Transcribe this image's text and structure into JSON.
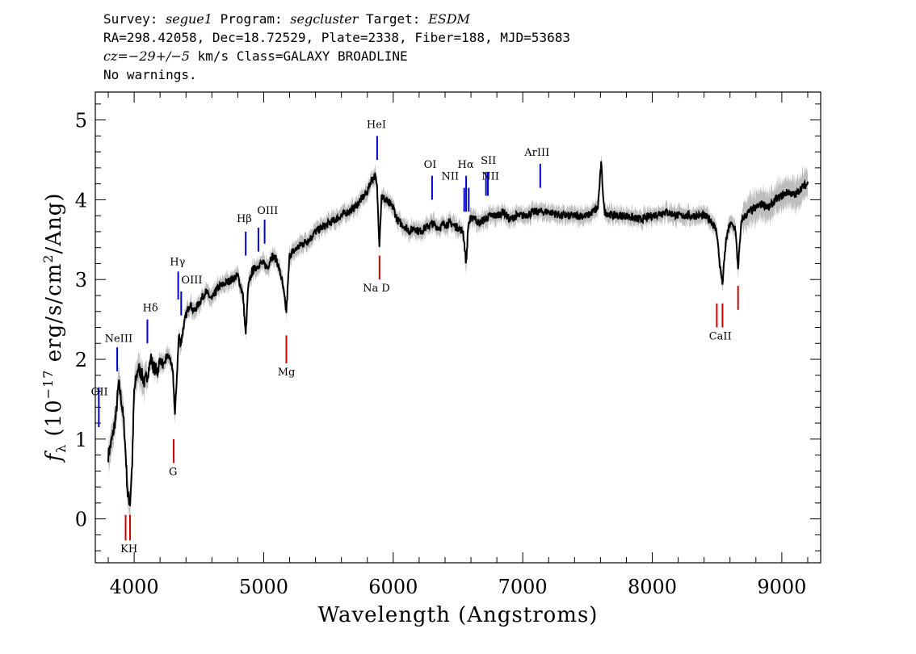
{
  "header": {
    "line1": {
      "survey_label": "Survey:",
      "survey": "segue1",
      "program_label": "Program:",
      "program": "segcluster",
      "target_label": "Target:",
      "target": "ESDM"
    },
    "line2": "RA=298.42058, Dec=18.72529, Plate=2338, Fiber=188, MJD=53683",
    "line3": {
      "cz_label": "cz=",
      "cz_value": "−29+/−5",
      "cz_rest": " km/s Class=GALAXY BROADLINE"
    },
    "line4": "No warnings."
  },
  "chart_data": {
    "type": "line",
    "xlabel": "Wavelength (Angstroms)",
    "ylabel": "f_λ (10^-17 erg/s/cm^2/Ang)",
    "xlim": [
      3700,
      9300
    ],
    "ylim": [
      -0.55,
      5.35
    ],
    "xticks": [
      4000,
      5000,
      6000,
      7000,
      8000,
      9000
    ],
    "yticks": [
      0,
      1,
      2,
      3,
      4,
      5
    ],
    "grid": false,
    "series": [
      {
        "color": "#000000",
        "error_color": "#bdbdbd",
        "x": [
          3800,
          3830,
          3860,
          3880,
          3900,
          3920,
          3935,
          3950,
          3968,
          3985,
          4000,
          4030,
          4060,
          4080,
          4100,
          4130,
          4150,
          4180,
          4200,
          4230,
          4250,
          4280,
          4300,
          4315,
          4330,
          4345,
          4360,
          4380,
          4400,
          4430,
          4460,
          4500,
          4550,
          4600,
          4650,
          4700,
          4750,
          4800,
          4840,
          4861,
          4880,
          4910,
          4940,
          4970,
          5000,
          5030,
          5060,
          5100,
          5140,
          5175,
          5200,
          5230,
          5260,
          5300,
          5350,
          5400,
          5450,
          5500,
          5550,
          5600,
          5650,
          5700,
          5750,
          5800,
          5830,
          5860,
          5875,
          5893,
          5910,
          5940,
          5970,
          6000,
          6030,
          6060,
          6100,
          6130,
          6160,
          6200,
          6250,
          6300,
          6350,
          6400,
          6450,
          6500,
          6540,
          6563,
          6580,
          6620,
          6660,
          6700,
          6750,
          6800,
          6850,
          6900,
          6950,
          7000,
          7100,
          7200,
          7300,
          7400,
          7500,
          7580,
          7605,
          7630,
          7700,
          7800,
          7900,
          8000,
          8100,
          8200,
          8300,
          8400,
          8450,
          8498,
          8520,
          8542,
          8570,
          8600,
          8640,
          8662,
          8690,
          8750,
          8800,
          8850,
          8900,
          8950,
          9000,
          9050,
          9100,
          9150,
          9200
        ],
        "y": [
          0.8,
          1.0,
          1.3,
          1.7,
          1.5,
          1.2,
          0.8,
          0.3,
          0.2,
          0.7,
          1.6,
          1.9,
          1.8,
          1.7,
          1.8,
          2.0,
          1.9,
          1.85,
          2.0,
          1.9,
          2.05,
          2.0,
          1.8,
          1.3,
          1.8,
          2.3,
          2.2,
          2.4,
          2.55,
          2.7,
          2.6,
          2.7,
          2.85,
          2.75,
          2.9,
          2.95,
          3.0,
          3.05,
          2.8,
          2.3,
          2.9,
          3.1,
          3.15,
          3.2,
          3.2,
          3.15,
          3.3,
          3.25,
          3.0,
          2.6,
          3.3,
          3.35,
          3.4,
          3.45,
          3.5,
          3.6,
          3.65,
          3.7,
          3.75,
          3.8,
          3.85,
          3.9,
          4.0,
          4.1,
          4.25,
          4.3,
          4.15,
          3.45,
          4.05,
          4.0,
          3.95,
          3.9,
          3.75,
          3.7,
          3.65,
          3.6,
          3.65,
          3.6,
          3.65,
          3.7,
          3.65,
          3.7,
          3.7,
          3.65,
          3.6,
          3.2,
          3.7,
          3.8,
          3.7,
          3.75,
          3.8,
          3.8,
          3.85,
          3.75,
          3.8,
          3.8,
          3.85,
          3.85,
          3.8,
          3.8,
          3.8,
          3.9,
          4.45,
          3.85,
          3.8,
          3.8,
          3.75,
          3.8,
          3.85,
          3.8,
          3.8,
          3.8,
          3.75,
          3.6,
          3.2,
          2.95,
          3.5,
          3.7,
          3.65,
          3.15,
          3.75,
          3.85,
          3.9,
          3.95,
          3.9,
          4.0,
          4.05,
          4.1,
          4.05,
          4.15,
          4.2
        ]
      }
    ],
    "line_markers": [
      {
        "label": "OII",
        "lambda": 3727,
        "color": "#0000cc",
        "y_top": 1.65,
        "y_bottom": 1.15,
        "label_y": 1.55
      },
      {
        "label": "NeIII",
        "lambda": 3869,
        "color": "#0000cc",
        "y_top": 2.15,
        "y_bottom": 1.85,
        "label_y": 2.22
      },
      {
        "label": "Hδ",
        "lambda": 4102,
        "color": "#0000cc",
        "y_top": 2.5,
        "y_bottom": 2.2,
        "label_y": 2.6
      },
      {
        "label": "Hγ",
        "lambda": 4340,
        "color": "#0000cc",
        "y_top": 3.1,
        "y_bottom": 2.75,
        "label_y": 3.18
      },
      {
        "label": "OIII",
        "lambda": 4363,
        "color": "#0000cc",
        "y_top": 2.85,
        "y_bottom": 2.55,
        "label_y": 2.95
      },
      {
        "label": "Hβ",
        "lambda": 4861,
        "color": "#0000cc",
        "y_top": 3.6,
        "y_bottom": 3.3,
        "label_y": 3.72
      },
      {
        "label": "OIII",
        "lambda": 4959,
        "color": "#0000cc",
        "y_top": 3.65,
        "y_bottom": 3.35,
        "label_y": 3.82
      },
      {
        "label": "OIII",
        "lambda": 5007,
        "color": "#0000cc",
        "y_top": 3.75,
        "y_bottom": 3.45,
        "label_y": 3.82
      },
      {
        "label": "HeI",
        "lambda": 5876,
        "color": "#0000cc",
        "y_top": 4.8,
        "y_bottom": 4.5,
        "label_y": 4.9
      },
      {
        "label": "OI",
        "lambda": 6300,
        "color": "#0000cc",
        "y_top": 4.3,
        "y_bottom": 4.0,
        "label_y": 4.4
      },
      {
        "label": "NII",
        "lambda": 6548,
        "color": "#0000cc",
        "y_top": 4.15,
        "y_bottom": 3.85,
        "label_y": 4.02
      },
      {
        "label": "Hα",
        "lambda": 6563,
        "color": "#0000cc",
        "y_top": 4.3,
        "y_bottom": 3.85,
        "label_y": 4.4
      },
      {
        "label": "NII",
        "lambda": 6583,
        "color": "#0000cc",
        "y_top": 4.15,
        "y_bottom": 3.85,
        "label_y": 4.02
      },
      {
        "label": "SII",
        "lambda": 6716,
        "color": "#0000cc",
        "y_top": 4.35,
        "y_bottom": 4.05,
        "label_y": 4.45
      },
      {
        "label": "SII",
        "lambda": 6731,
        "color": "#0000cc",
        "y_top": 4.35,
        "y_bottom": 4.05,
        "label_y": 4.45
      },
      {
        "label": "ArIII",
        "lambda": 7135,
        "color": "#0000cc",
        "y_top": 4.45,
        "y_bottom": 4.15,
        "label_y": 4.55
      },
      {
        "label": "K",
        "lambda": 3934,
        "color": "#cc0000",
        "y_top": 0.05,
        "y_bottom": -0.27,
        "label_y": -0.42
      },
      {
        "label": "H",
        "lambda": 3968,
        "color": "#cc0000",
        "y_top": 0.05,
        "y_bottom": -0.27,
        "label_y": -0.42
      },
      {
        "label": "G",
        "lambda": 4305,
        "color": "#cc0000",
        "y_top": 1.0,
        "y_bottom": 0.7,
        "label_y": 0.55
      },
      {
        "label": "Mg",
        "lambda": 5175,
        "color": "#cc0000",
        "y_top": 2.3,
        "y_bottom": 1.95,
        "label_y": 1.8
      },
      {
        "label": "Na D",
        "lambda": 5894,
        "color": "#cc0000",
        "y_top": 3.3,
        "y_bottom": 3.0,
        "label_y": 2.85
      },
      {
        "label": "CaII",
        "lambda": 8498,
        "color": "#cc0000",
        "y_top": 2.7,
        "y_bottom": 2.4,
        "label_y": 2.25
      },
      {
        "label": "CaII",
        "lambda": 8542,
        "color": "#cc0000",
        "y_top": 2.7,
        "y_bottom": 2.4,
        "label_y": 2.25
      },
      {
        "label": "CaII",
        "lambda": 8662,
        "color": "#cc0000",
        "y_top": 2.92,
        "y_bottom": 2.62,
        "label_y": 2.25
      }
    ],
    "marker_label_texts": [
      "OII",
      "NeIII",
      "Hδ",
      "Hγ",
      "OIII",
      "Hβ",
      "OIII",
      "HeI",
      "OI",
      "NII",
      "Hα",
      "NII",
      "SII",
      "ArIII",
      "KH",
      "G",
      "Mg",
      "Na  D",
      "CaII"
    ]
  }
}
